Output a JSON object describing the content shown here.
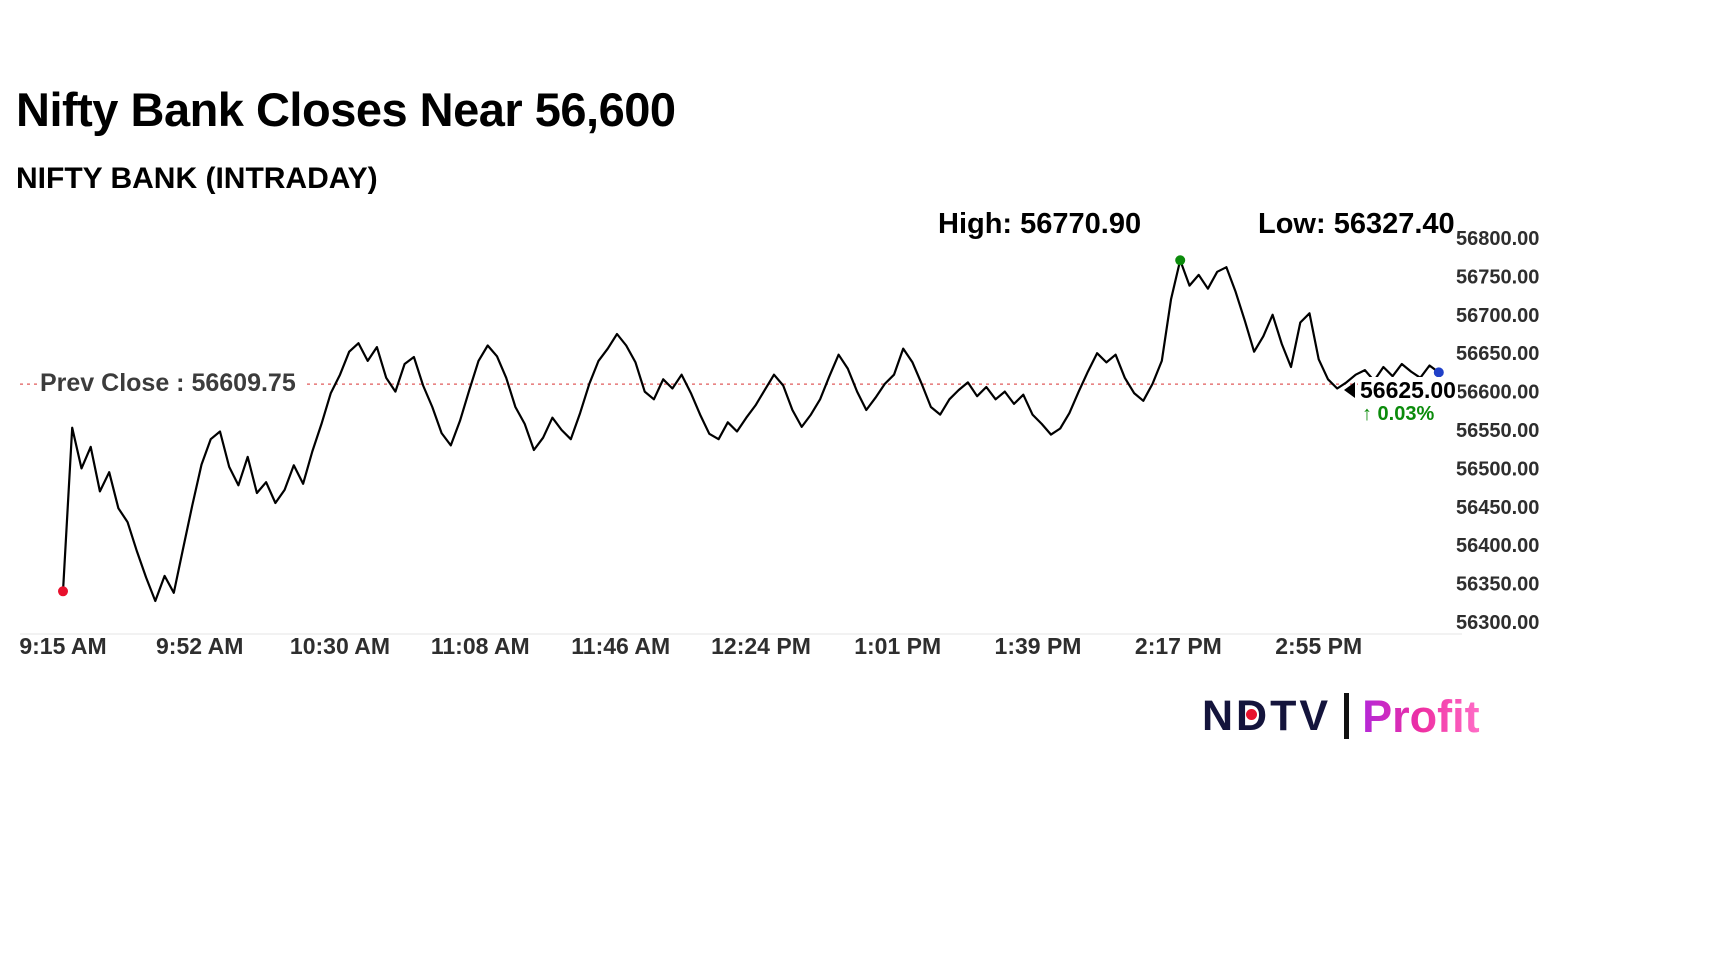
{
  "header": {
    "title": "Nifty Bank Closes Near 56,600",
    "subtitle": "NIFTY BANK (INTRADAY)"
  },
  "chart_data": {
    "type": "line",
    "title": "Nifty Bank Closes Near 56,600",
    "subtitle": "NIFTY BANK (INTRADAY)",
    "high": 56770.9,
    "low": 56327.4,
    "high_label": "High: 56770.90",
    "low_label": "Low: 56327.40",
    "prev_close": 56609.75,
    "prev_close_label": "Prev Close : 56609.75",
    "last_price": 56625.0,
    "last_price_label": "56625.00",
    "change_label": "↑ 0.03%",
    "change_color": "#0b8b0b",
    "y_min": 56300,
    "y_max": 56800,
    "y_ticks": [
      {
        "value": 56800,
        "label": "56800.00"
      },
      {
        "value": 56750,
        "label": "56750.00"
      },
      {
        "value": 56700,
        "label": "56700.00"
      },
      {
        "value": 56650,
        "label": "56650.00"
      },
      {
        "value": 56600,
        "label": "56600.00"
      },
      {
        "value": 56550,
        "label": "56550.00"
      },
      {
        "value": 56500,
        "label": "56500.00"
      },
      {
        "value": 56450,
        "label": "56450.00"
      },
      {
        "value": 56400,
        "label": "56400.00"
      },
      {
        "value": 56350,
        "label": "56350.00"
      },
      {
        "value": 56300,
        "label": "56300.00"
      }
    ],
    "total_minutes": 375,
    "sample_interval_minutes": 2.5,
    "x_ticks": [
      {
        "minute": 0,
        "label": "9:15 AM"
      },
      {
        "minute": 37,
        "label": "9:52 AM"
      },
      {
        "minute": 75,
        "label": "10:30 AM"
      },
      {
        "minute": 113,
        "label": "11:08 AM"
      },
      {
        "minute": 151,
        "label": "11:46 AM"
      },
      {
        "minute": 189,
        "label": "12:24 PM"
      },
      {
        "minute": 226,
        "label": "1:01 PM"
      },
      {
        "minute": 264,
        "label": "1:39 PM"
      },
      {
        "minute": 302,
        "label": "2:17 PM"
      },
      {
        "minute": 340,
        "label": "2:55 PM"
      }
    ],
    "line_color": "#000000",
    "prev_close_color": "#e05b5b",
    "axis_label_color": "#2e2e2e",
    "marker_colors": {
      "start": "#e8112d",
      "high": "#0b8b0b",
      "end": "#2040c8"
    },
    "prices": [
      56340,
      56553,
      56500,
      56528,
      56470,
      56495,
      56448,
      56430,
      56392,
      56358,
      56327.4,
      56360,
      56338,
      56395,
      56452,
      56505,
      56538,
      56548,
      56502,
      56478,
      56515,
      56468,
      56482,
      56455,
      56472,
      56504,
      56480,
      56522,
      56558,
      56598,
      56622,
      56652,
      56663,
      56640,
      56658,
      56618,
      56600,
      56636,
      56645,
      56608,
      56580,
      56546,
      56530,
      56562,
      56602,
      56640,
      56660,
      56646,
      56618,
      56580,
      56558,
      56524,
      56540,
      56566,
      56550,
      56538,
      56572,
      56610,
      56640,
      56656,
      56675,
      56660,
      56638,
      56600,
      56590,
      56616,
      56604,
      56622,
      56598,
      56570,
      56545,
      56538,
      56560,
      56548,
      56566,
      56582,
      56602,
      56622,
      56608,
      56576,
      56554,
      56570,
      56590,
      56620,
      56648,
      56630,
      56600,
      56576,
      56592,
      56610,
      56622,
      56656,
      56638,
      56610,
      56580,
      56570,
      56590,
      56602,
      56612,
      56594,
      56606,
      56590,
      56600,
      56584,
      56596,
      56570,
      56558,
      56544,
      56552,
      56572,
      56600,
      56626,
      56650,
      56638,
      56648,
      56618,
      56598,
      56588,
      56610,
      56640,
      56720,
      56770.9,
      56738,
      56752,
      56734,
      56756,
      56762,
      56730,
      56692,
      56652,
      56672,
      56700,
      56662,
      56632,
      56690,
      56702,
      56642,
      56616,
      56604,
      56612,
      56622,
      56628,
      56614,
      56632,
      56620,
      56636,
      56626,
      56618,
      56634,
      56625
    ]
  },
  "logo": {
    "brand": "NDTV",
    "product": "Profit",
    "brand_color": "#14143c",
    "dot_color": "#e8112d",
    "gradient": [
      "#b428d8",
      "#ef2fa2",
      "#ff6ec7"
    ]
  }
}
